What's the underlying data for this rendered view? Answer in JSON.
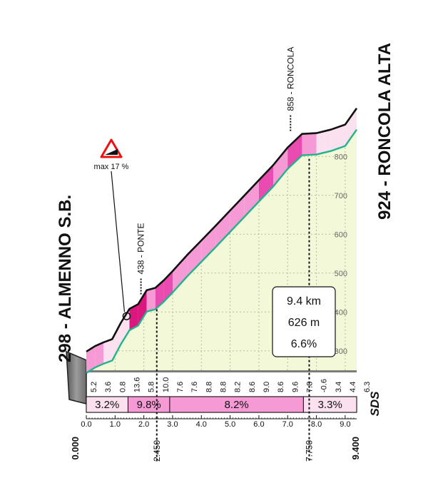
{
  "chart_data": {
    "type": "area",
    "title": "",
    "xlabel": "",
    "ylabel": "",
    "xlim": [
      0,
      9.4
    ],
    "ylim": [
      250,
      940
    ],
    "start": {
      "label": "298 - ALMENNO S.B.",
      "km": "0.000"
    },
    "finish": {
      "label": "924 - RONCOLA ALTA",
      "km": "9.400"
    },
    "waypoints": [
      {
        "label": "438 - PONTE",
        "x": 1.9,
        "y": 438
      },
      {
        "label": "858 - RONCOLA",
        "x": 7.1,
        "y": 858
      }
    ],
    "marked_km": [
      {
        "label": "2.450",
        "x": 2.45
      },
      {
        "label": "7.750",
        "x": 7.75
      }
    ],
    "max_gradient": {
      "label": "max 17 %",
      "x": 1.4,
      "y": 415
    },
    "summary": {
      "distance": "9.4 km",
      "gain": "626 m",
      "gradient": "6.6%"
    },
    "x_ticks": [
      "0.0",
      "1.0",
      "2.0",
      "3.0",
      "4.0",
      "5.0",
      "6.0",
      "7.0",
      "8.0",
      "9.0"
    ],
    "y_ticks": [
      "300",
      "400",
      "500",
      "600",
      "700",
      "800"
    ],
    "profile": {
      "x": [
        0,
        0.3,
        0.6,
        0.9,
        1.2,
        1.5,
        1.8,
        2.1,
        2.4,
        2.7,
        3.0,
        3.5,
        4.0,
        4.5,
        5.0,
        5.5,
        6.0,
        6.5,
        7.0,
        7.5,
        8.0,
        8.5,
        9.0,
        9.4
      ],
      "y": [
        298,
        312,
        322,
        330,
        372,
        408,
        420,
        456,
        462,
        482,
        505,
        546,
        584,
        622,
        661,
        700,
        739,
        778,
        823,
        858,
        860,
        869,
        882,
        924
      ]
    },
    "km_gradients": [
      "5.2",
      "3.6",
      "0.8",
      "13.6",
      "5.8",
      "10.0",
      "7.6",
      "7.6",
      "8.8",
      "8.8",
      "8.2",
      "8.6",
      "9.0",
      "8.6",
      "9.6",
      "7.8",
      "-0.6",
      "3.4",
      "4.4",
      "6.3"
    ],
    "segments": [
      {
        "label": "3.2%",
        "from": 0,
        "to": 1.45,
        "color": "#fbe0ef"
      },
      {
        "label": "9.8%",
        "from": 1.45,
        "to": 2.9,
        "color": "#f59ad4"
      },
      {
        "label": "8.2%",
        "from": 2.9,
        "to": 7.55,
        "color": "#f59ad4"
      },
      {
        "label": "3.3%",
        "from": 7.55,
        "to": 9.4,
        "color": "#fbe0ef"
      }
    ],
    "logo": "SDS",
    "colors": {
      "area": "#f3f9d8",
      "grid": "#b8bba6",
      "ribbon_light": "#fbe0ef",
      "ribbon_mid": "#f59ad4",
      "ribbon_dark": "#e94bb0",
      "ribbon_max": "#d9177e",
      "edge": "#22b38c",
      "base": "#7c7c7c"
    }
  }
}
